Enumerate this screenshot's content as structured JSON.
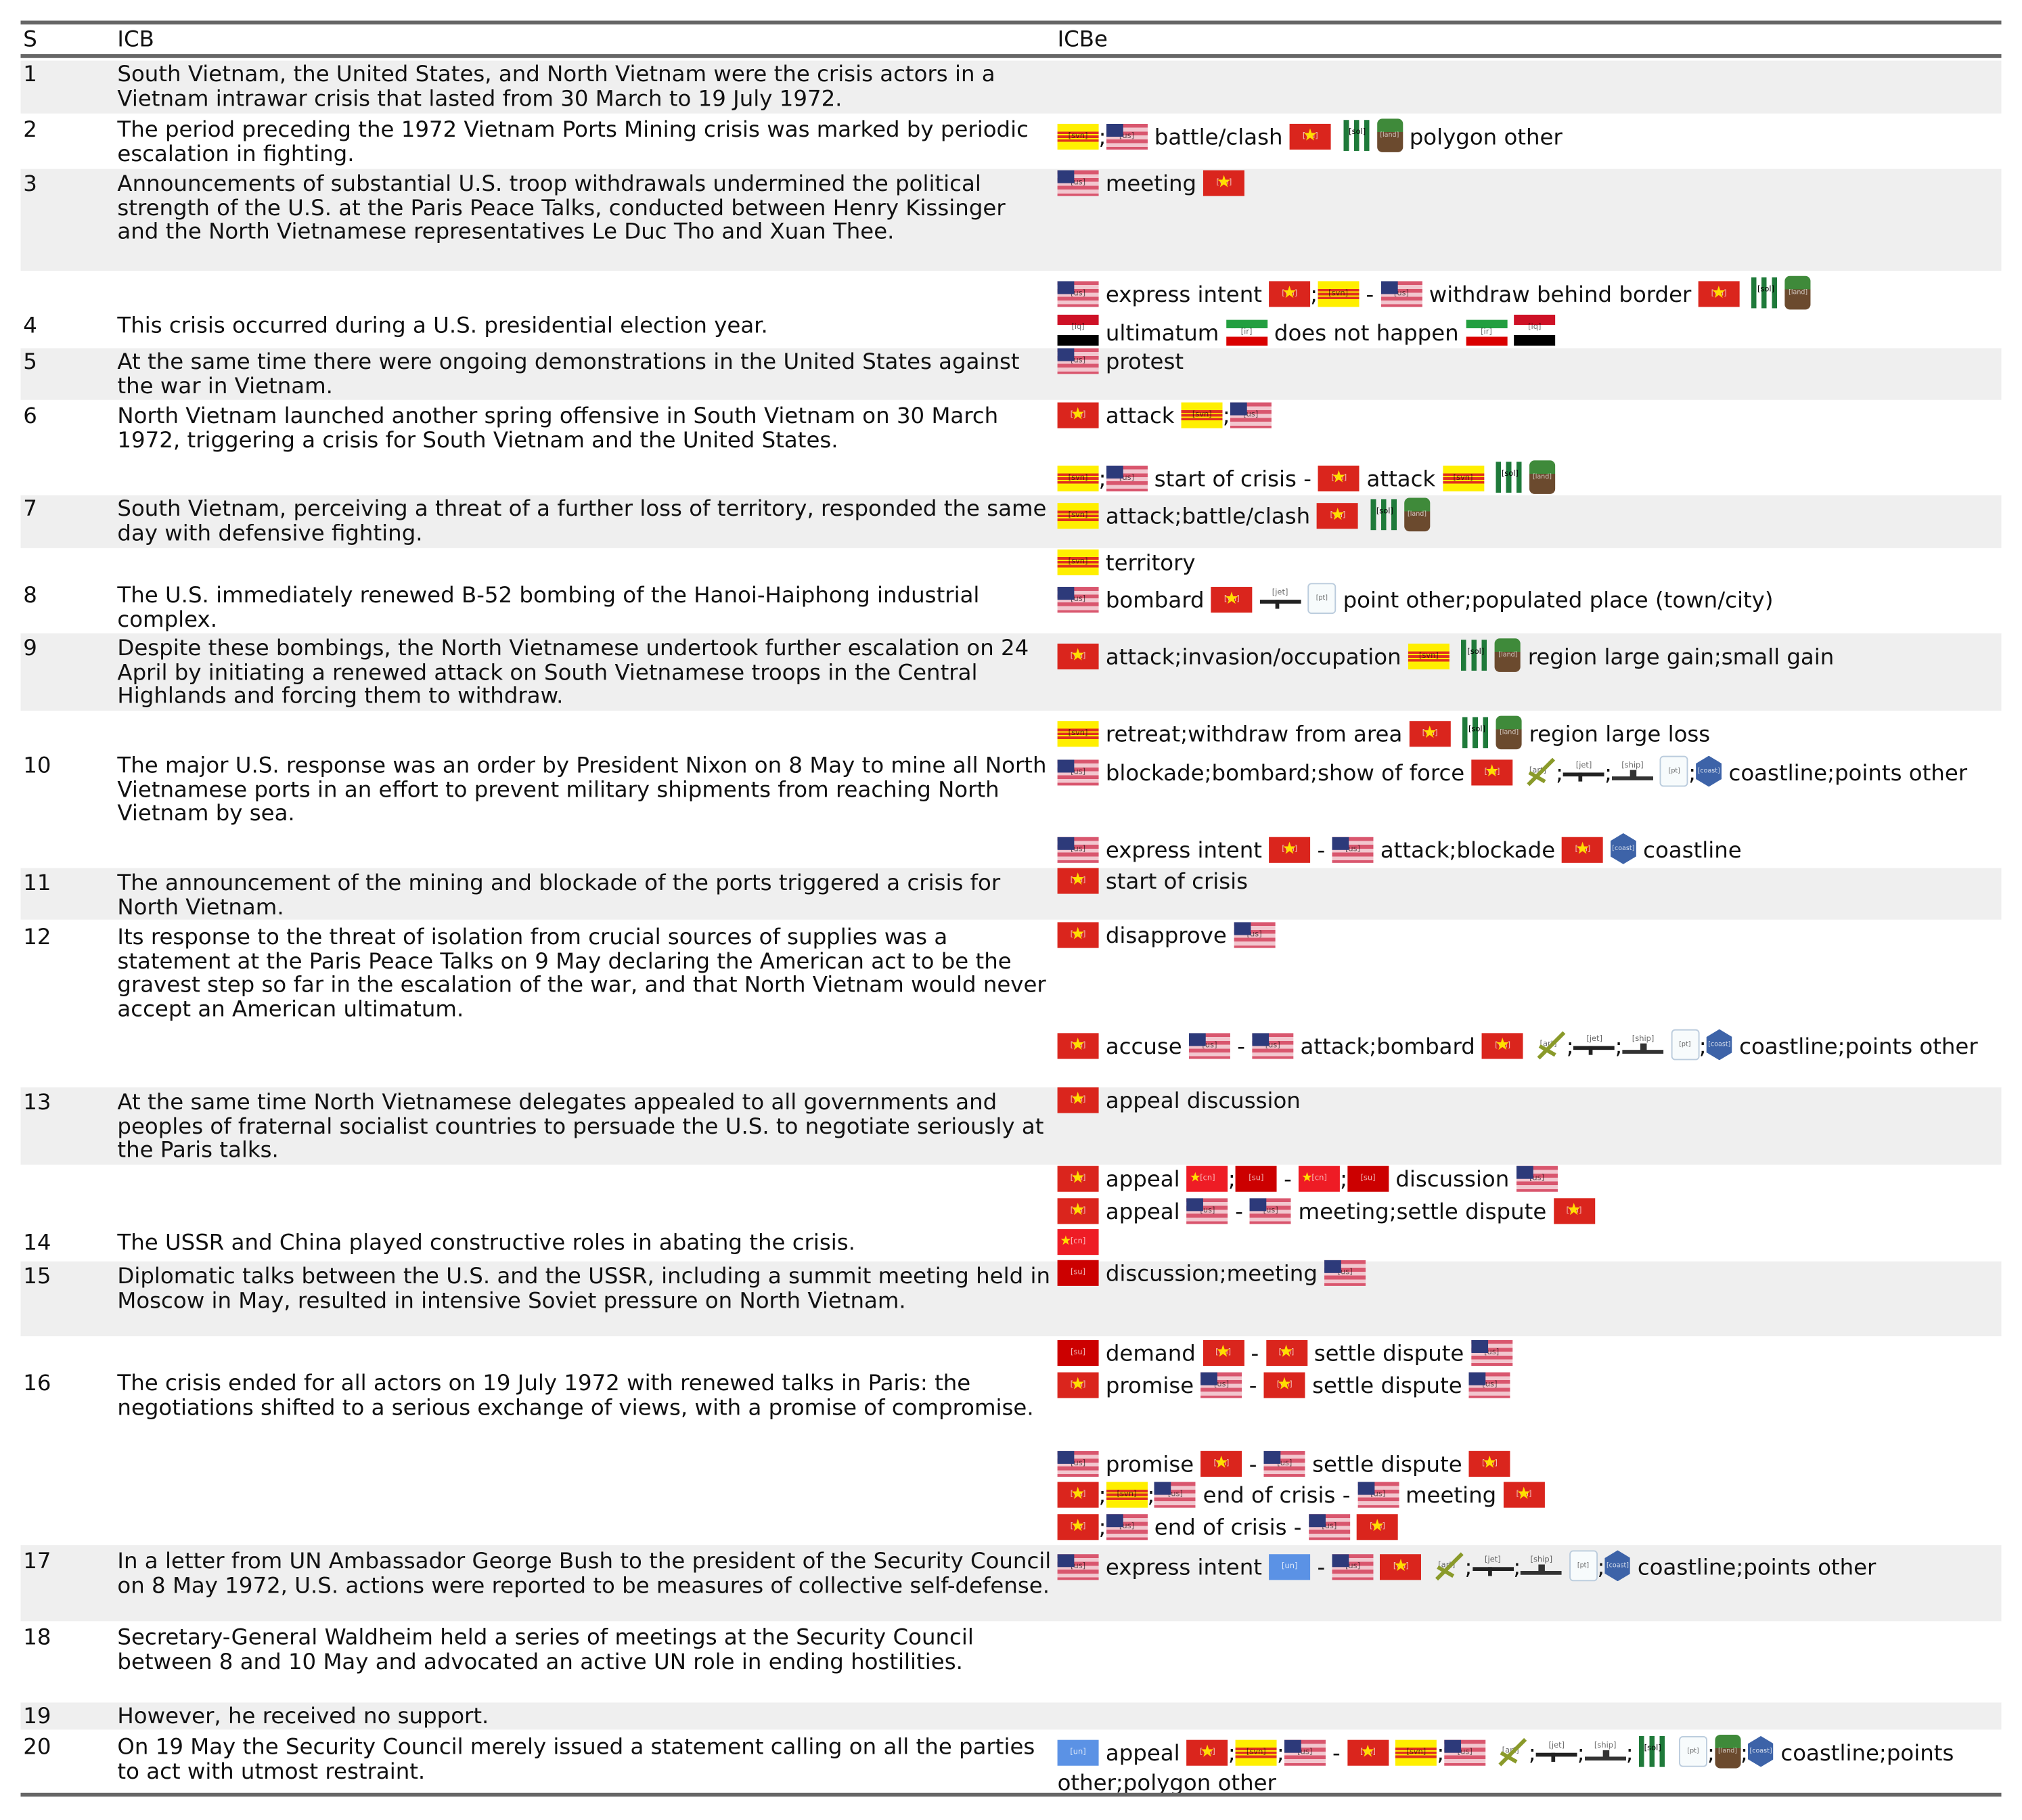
{
  "header": {
    "s": "S",
    "icb": "ICB",
    "icbe": "ICBe"
  },
  "icons": {
    "us": "flag-united-states-icon",
    "vn": "flag-north-vietnam-icon",
    "svn": "flag-south-vietnam-icon",
    "iq": "flag-iraq-icon",
    "ir": "flag-iran-icon",
    "cn": "flag-china-icon",
    "su": "flag-ussr-icon",
    "un": "flag-united-nations-icon",
    "sol": "soldiers-icon",
    "land": "land-block-icon",
    "jet": "aircraft-icon",
    "ship": "ship-icon",
    "art": "artillery-icon",
    "pt": "point-cube-icon",
    "coast": "coastline-hex-icon"
  },
  "rows": [
    {
      "s": "1",
      "icb": "South Vietnam, the United States, and North Vietnam were the crisis actors in a Vietnam intrawar crisis that lasted from 30 March to 19 July 1972.",
      "events": []
    },
    {
      "s": "2",
      "icb": "The period preceding the 1972 Vietnam Ports Mining crisis was marked by periodic escalation in fighting.",
      "events": [
        "[svn];[us] battle/clash [vn] [sol][land] polygon other"
      ]
    },
    {
      "s": "3",
      "icb": "Announcements of substantial U.S. troop withdrawals undermined the political strength of the U.S. at the Paris Peace Talks, conducted between Henry Kissinger and the North Vietnamese representatives Le Duc Tho and Xuan Thee.",
      "events": [
        "[us] meeting [vn]",
        "[us] express intent [vn];[svn] - [us] withdraw behind border [vn] [sol][land]"
      ]
    },
    {
      "s": "4",
      "icb": "This crisis occurred during a U.S. presidential election year.",
      "events": [
        "[iq] ultimatum [ir] does not happen [ir] [iq]"
      ]
    },
    {
      "s": "5",
      "icb": "At the same time there were ongoing demonstrations in the United States against the war in Vietnam.",
      "events": [
        "[us] protest"
      ]
    },
    {
      "s": "6",
      "icb": "North Vietnam launched another spring offensive in South Vietnam on 30 March 1972, triggering a crisis for South Vietnam and the United States.",
      "events": [
        "[vn] attack [svn];[us]",
        "[svn];[us] start of crisis - [vn] attack [svn] [sol][land]"
      ]
    },
    {
      "s": "7",
      "icb": "South Vietnam, perceiving a threat of a further loss of territory, responded the same day with defensive fighting.",
      "events": [
        "[svn] attack;battle/clash [vn] [sol][land]",
        "[svn] territory"
      ]
    },
    {
      "s": "8",
      "icb": "The U.S. immediately renewed B-52 bombing of the Hanoi-Haiphong industrial complex.",
      "events": [
        "[us] bombard [vn] [jet] [pt] point other;populated place (town/city)"
      ]
    },
    {
      "s": "9",
      "icb": "Despite these bombings, the North Vietnamese undertook further escalation on 24 April by initiating a renewed attack on South Vietnamese troops in the Central Highlands and forcing them to withdraw.",
      "events": [
        "[vn] attack;invasion/occupation [svn] [sol][land] region large gain;small gain",
        "[svn] retreat;withdraw from area [vn] [sol][land] region large loss"
      ]
    },
    {
      "s": "10",
      "icb": "The major U.S. response was an order by President Nixon on 8 May to mine all North Vietnamese ports in an effort to prevent military shipments from reaching North Vietnam by sea.",
      "events": [
        "[us] blockade;bombard;show of force [vn] [art];[jet];[ship] [pt];[coast] coastline;points other",
        "[us] express intent [vn] - [us] attack;blockade [vn] [coast] coastline"
      ]
    },
    {
      "s": "11",
      "icb": "The announcement of the mining and blockade of the ports triggered a crisis for North Vietnam.",
      "events": [
        "[vn] start of crisis"
      ]
    },
    {
      "s": "12",
      "icb": "Its response to the threat of isolation from crucial sources of supplies was a statement at the Paris Peace Talks on 9 May declaring the American act to be the gravest step so far in the escalation of the war, and that North Vietnam would never accept an American ultimatum.",
      "events": [
        "[vn] disapprove [us]",
        "[vn] accuse [us] - [us] attack;bombard [vn] [art];[jet];[ship] [pt];[coast] coastline;points other"
      ]
    },
    {
      "s": "13",
      "icb": "At the same time North Vietnamese delegates appealed to all governments and peoples of fraternal socialist countries to persuade the U.S. to negotiate seriously at the Paris talks.",
      "events": [
        "[vn] appeal discussion",
        "[vn] appeal [cn];[su] - [cn];[su] discussion [us]",
        "[vn] appeal [us] - [us] meeting;settle dispute [vn]"
      ]
    },
    {
      "s": "14",
      "icb": "The USSR and China played constructive roles in abating the crisis.",
      "events": [
        "[cn]"
      ]
    },
    {
      "s": "15",
      "icb": "Diplomatic talks between the U.S. and the USSR, including a summit meeting held in Moscow in May, resulted in intensive Soviet pressure on North Vietnam.",
      "events": [
        "[su] discussion;meeting [us]"
      ]
    },
    {
      "s": "16",
      "icb": "The crisis ended for all actors on 19 July 1972 with renewed talks in Paris: the negotiations shifted to a serious exchange of views, with a promise of compromise.",
      "events": [
        "[su] demand [vn] - [vn] settle dispute [us]",
        "[vn] promise [us] - [vn] settle dispute [us]",
        "[us] promise [vn] - [us] settle dispute [vn]",
        "[vn];[svn];[us] end of crisis - [us] meeting [vn]",
        "[vn];[us] end of crisis - [us] [vn]"
      ]
    },
    {
      "s": "17",
      "icb": "In a letter from UN Ambassador George Bush to the president of the Security Council on 8 May 1972, U.S. actions were reported to be measures of collective self-defense.",
      "events": [
        "[us] express intent [un] - [us] [vn] [art];[jet];[ship] [pt];[coast] coastline;points other"
      ]
    },
    {
      "s": "18",
      "icb": "Secretary-General Waldheim held a series of meetings at the Security Council between 8 and 10 May and advocated an active UN role in ending hostilities.",
      "events": []
    },
    {
      "s": "19",
      "icb": "However, he received no support.",
      "events": []
    },
    {
      "s": "20",
      "icb": "On 19 May the Security Council merely issued a statement calling on all the parties to act with utmost restraint.",
      "events": [
        "[un] appeal [vn];[svn];[us] - [vn] [svn];[us] [art];[jet];[ship];[sol] [pt];[land];[coast] coastline;points other;polygon other"
      ]
    }
  ]
}
